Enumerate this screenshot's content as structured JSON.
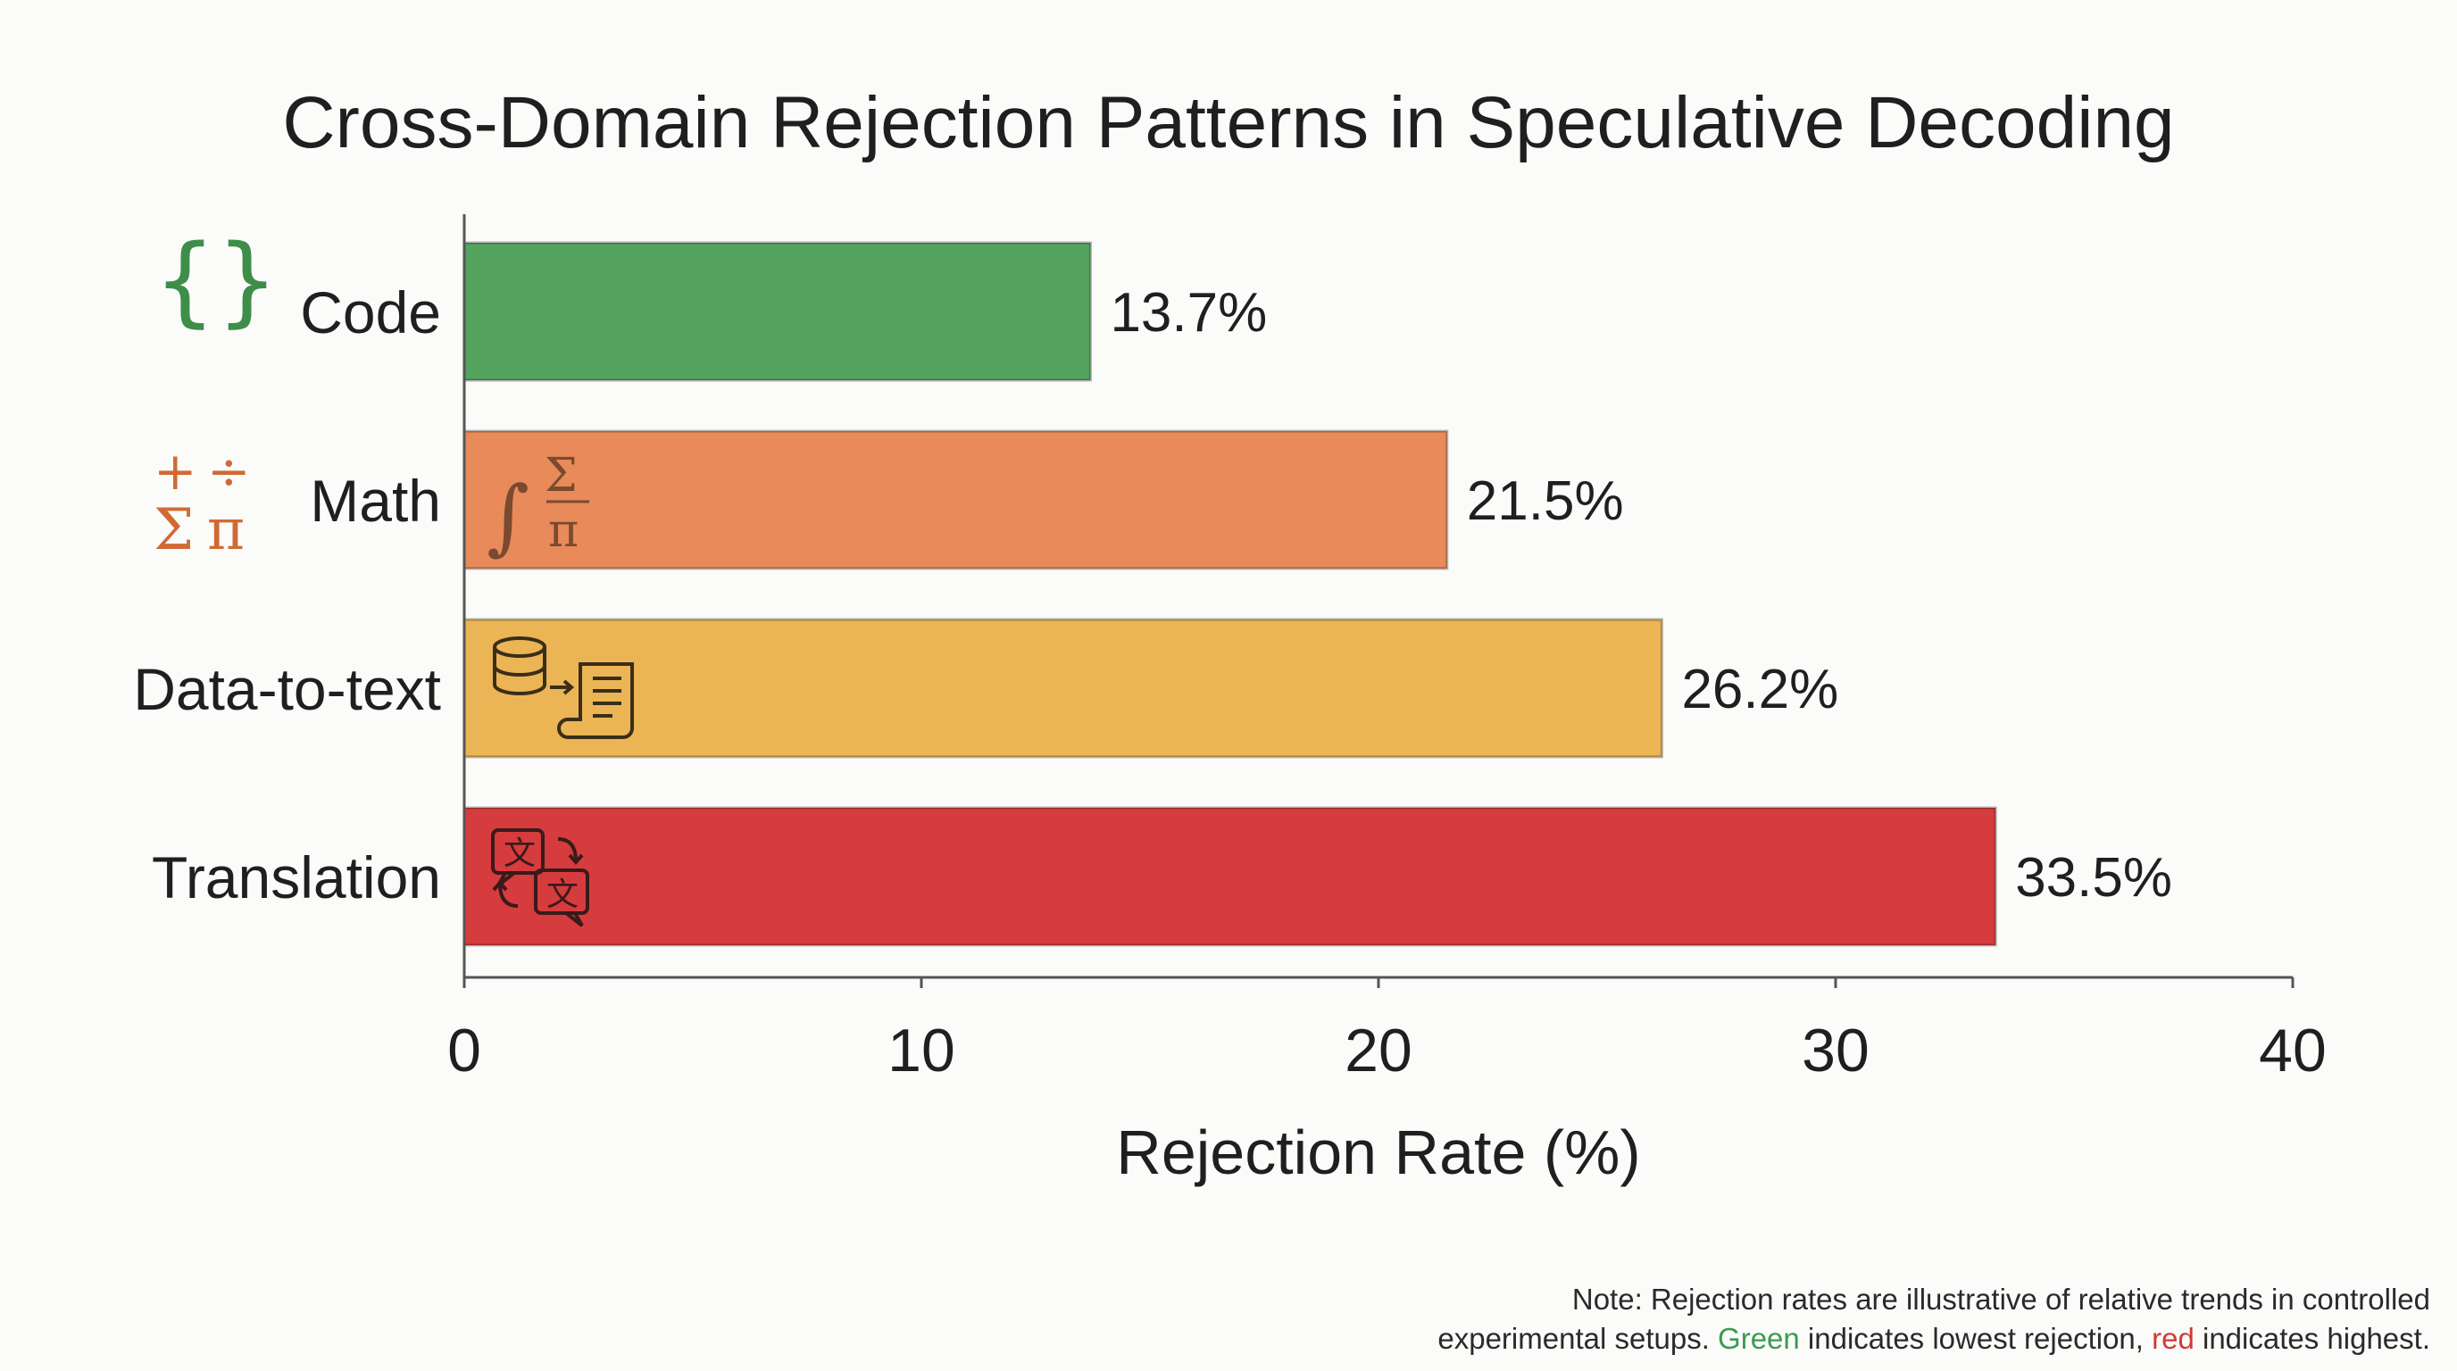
{
  "colors": {
    "green": "#54a45f",
    "orange": "#e88a5a",
    "yellow": "#ebb555",
    "red": "#d63c3d"
  },
  "chart_data": {
    "type": "bar",
    "orientation": "horizontal",
    "title": "Cross-Domain Rejection Patterns in Speculative Decoding",
    "xlabel": "Rejection Rate (%)",
    "ylabel": "",
    "xlim": [
      0,
      40
    ],
    "xticks": [
      "0",
      "10",
      "20",
      "30",
      "40"
    ],
    "grid": false,
    "categories": [
      "Code",
      "Math",
      "Data-to-text",
      "Translation"
    ],
    "values": [
      13.7,
      21.5,
      26.2,
      33.5
    ],
    "value_labels": [
      "13.7%",
      "21.5%",
      "26.2%",
      "33.5%"
    ],
    "bar_colors": [
      "#54a45f",
      "#e88a5a",
      "#ebb555",
      "#d63c3d"
    ],
    "category_icons": [
      "braces-icon",
      "math-symbols-icon",
      "",
      ""
    ],
    "bar_icons": [
      "",
      "integral-sigma-pi-icon",
      "database-to-document-icon",
      "translate-icon"
    ]
  },
  "note": {
    "line1": "Note: Rejection rates are illustrative of relative trends in controlled",
    "line2_before": "experimental setups. ",
    "green_word": "Green",
    "line2_middle": " indicates lowest rejection, ",
    "red_word": "red",
    "line2_after": " indicates highest."
  }
}
